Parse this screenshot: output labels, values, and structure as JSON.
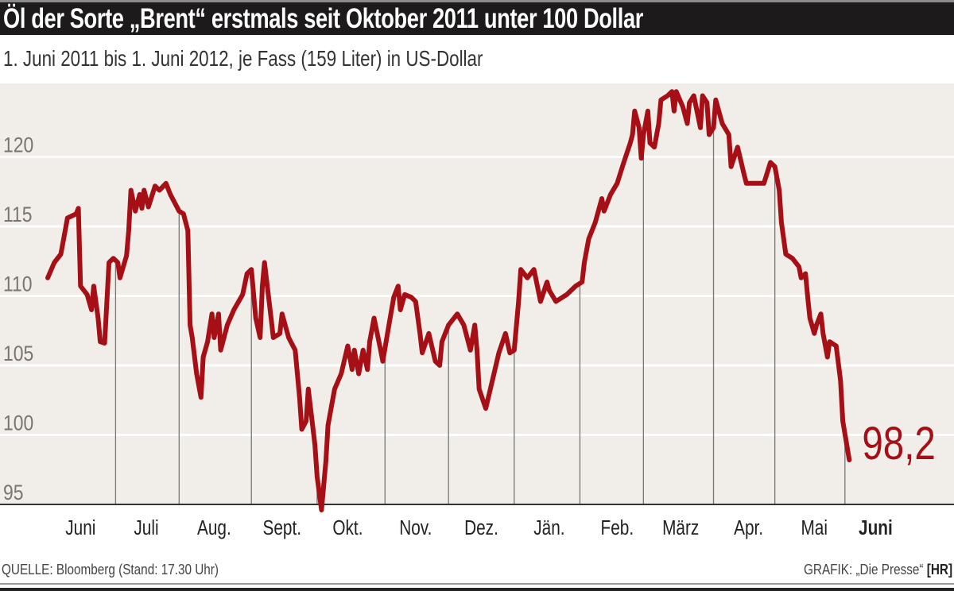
{
  "header": {
    "title": "Öl der Sorte „Brent“ erstmals seit Oktober 2011 unter 100 Dollar",
    "subtitle": "1. Juni 2011 bis 1. Juni 2012, je Fass (159 Liter) in US-Dollar"
  },
  "footer": {
    "source": "QUELLE: Bloomberg (Stand: 17.30 Uhr)",
    "credit": "GRAFIK: „Die Presse“",
    "credit_tag": "[HR]"
  },
  "colors": {
    "line": "#a50f15",
    "plot_bg": "#f1ede8",
    "grid": "#ffffff",
    "axis_text": "#7a7470"
  },
  "chart_data": {
    "type": "line",
    "title": "Öl der Sorte „Brent“ erstmals seit Oktober 2011 unter 100 Dollar",
    "subtitle": "1. Juni 2011 bis 1. Juni 2012, je Fass (159 Liter) in US-Dollar",
    "xlabel": "",
    "ylabel": "US-Dollar je Fass",
    "x_unit": "days since 1. Juni 2011",
    "ylim": [
      95,
      125
    ],
    "yticks": [
      95,
      100,
      105,
      110,
      115,
      120
    ],
    "grid": true,
    "x_tick_labels": [
      "Juni",
      "Juli",
      "Aug.",
      "Sept.",
      "Okt.",
      "Nov.",
      "Dez.",
      "Jän.",
      "Feb.",
      "März",
      "Apr.",
      "Mai",
      "Juni"
    ],
    "x_tick_days": [
      15,
      45,
      76,
      107,
      137,
      168,
      198,
      229,
      260,
      289,
      320,
      350,
      378
    ],
    "month_start_days": [
      31,
      60,
      93,
      123,
      154,
      183,
      213,
      243,
      272,
      304,
      332,
      364
    ],
    "end_label": "98,2",
    "series": [
      {
        "name": "Brent",
        "x": [
          0,
          3,
          6,
          8,
          9,
          13,
          14,
          15,
          18,
          20,
          21,
          23,
          24,
          26,
          28,
          30,
          32,
          33,
          36,
          37,
          38,
          40,
          42,
          43,
          44,
          46,
          49,
          51,
          54,
          56,
          60,
          62,
          64,
          65,
          66,
          68,
          70,
          71,
          73,
          75,
          76,
          78,
          79,
          82,
          85,
          89,
          91,
          93,
          95,
          97,
          98,
          99,
          102,
          103,
          106,
          107,
          110,
          111,
          113,
          115,
          116,
          118,
          119,
          122,
          123,
          125,
          127,
          128,
          131,
          134,
          137,
          139,
          140,
          142,
          144,
          146,
          147,
          149,
          152,
          153,
          156,
          158,
          160,
          161,
          163,
          166,
          168,
          170,
          171,
          174,
          177,
          179,
          180,
          183,
          187,
          190,
          193,
          195,
          196,
          197,
          200,
          203,
          206,
          209,
          211,
          213,
          215,
          216,
          219,
          222,
          225,
          228,
          229,
          232,
          237,
          241,
          244,
          245,
          247,
          250,
          253,
          254,
          257,
          260,
          263,
          266,
          267,
          268,
          270,
          271,
          272,
          274,
          275,
          277,
          279,
          280,
          283,
          285,
          286,
          287,
          290,
          292,
          293,
          295,
          298,
          299,
          301,
          302,
          304,
          305,
          308,
          311,
          312,
          315,
          318,
          319,
          324,
          327,
          330,
          332,
          334,
          335,
          337,
          340,
          343,
          344,
          346,
          347,
          348,
          350,
          351,
          353,
          354,
          356,
          357,
          360,
          362,
          363,
          366
        ],
        "values": [
          111.3,
          112.4,
          113.0,
          114.7,
          115.6,
          115.9,
          116.3,
          110.7,
          110.1,
          109.0,
          110.7,
          108.4,
          106.7,
          106.6,
          112.4,
          112.7,
          112.4,
          111.3,
          112.9,
          114.7,
          117.6,
          116.1,
          117.3,
          116.3,
          117.6,
          116.4,
          117.9,
          117.6,
          118.1,
          117.3,
          116.1,
          115.9,
          114.7,
          107.9,
          107.0,
          104.4,
          102.7,
          105.6,
          106.7,
          108.7,
          107.0,
          108.7,
          106.1,
          107.9,
          109.0,
          110.1,
          111.6,
          111.9,
          108.4,
          107.0,
          110.7,
          112.4,
          108.4,
          107.0,
          107.3,
          108.7,
          107.0,
          106.7,
          106.1,
          102.7,
          100.4,
          101.0,
          103.3,
          99.3,
          97.0,
          94.6,
          98.1,
          100.7,
          103.3,
          104.4,
          106.4,
          104.7,
          106.1,
          104.4,
          106.1,
          104.7,
          106.7,
          108.4,
          106.1,
          105.3,
          108.1,
          109.9,
          110.7,
          109.0,
          110.1,
          109.9,
          109.6,
          107.3,
          105.9,
          107.3,
          105.3,
          105.0,
          106.7,
          107.9,
          108.7,
          107.9,
          106.1,
          107.9,
          106.1,
          103.3,
          101.9,
          103.9,
          105.9,
          107.3,
          105.9,
          106.1,
          109.6,
          111.9,
          111.3,
          111.9,
          109.6,
          111.0,
          110.4,
          109.6,
          110.1,
          110.7,
          111.0,
          112.4,
          114.1,
          115.3,
          117.0,
          116.1,
          117.3,
          118.1,
          119.6,
          121.0,
          121.6,
          123.3,
          122.1,
          119.9,
          121.6,
          123.3,
          121.0,
          120.7,
          122.4,
          124.1,
          124.4,
          124.7,
          123.3,
          124.7,
          123.6,
          122.4,
          123.9,
          124.4,
          122.1,
          124.4,
          123.9,
          121.6,
          122.1,
          124.1,
          122.4,
          121.6,
          119.3,
          120.7,
          118.7,
          118.1,
          118.1,
          118.1,
          119.6,
          119.3,
          117.6,
          115.3,
          113.0,
          112.7,
          112.1,
          111.3,
          111.6,
          109.9,
          108.4,
          107.3,
          107.9,
          108.7,
          107.3,
          105.6,
          106.7,
          106.4,
          103.9,
          101.0,
          98.2
        ]
      }
    ]
  }
}
